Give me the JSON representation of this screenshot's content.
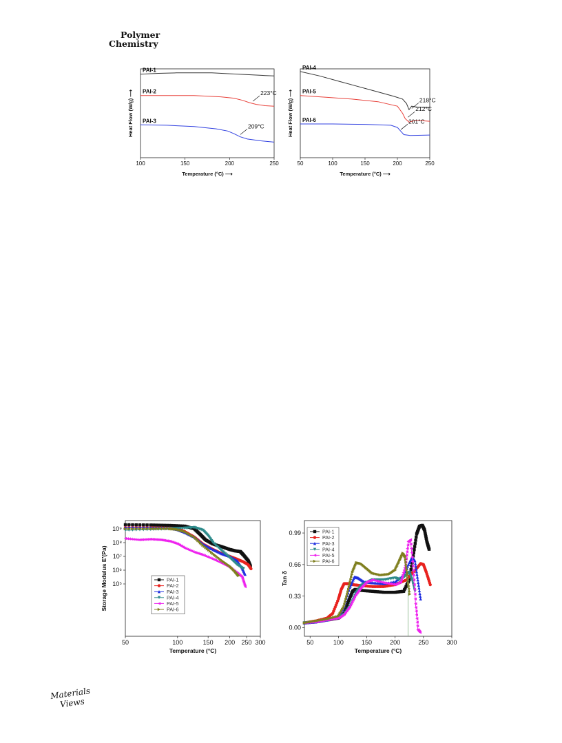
{
  "page": {
    "journal_line1": "Polymer",
    "journal_line2": "Chemistry",
    "brand_line1": "Materials",
    "brand_line2": "Views"
  },
  "chart_data": [
    {
      "type": "line",
      "xlabel": "Temperature (°C) ⟶",
      "ylabel": "Heat Flow (W/g) ⟶",
      "xlim": [
        100,
        250
      ],
      "ylim": [
        0,
        1
      ],
      "xticks": [
        100,
        150,
        200,
        250
      ],
      "grid": false,
      "series": [
        {
          "name": "PAI-1",
          "color": "#333333",
          "x": [
            100,
            120,
            140,
            160,
            180,
            200,
            220,
            240,
            250
          ],
          "y": [
            0.94,
            0.95,
            0.955,
            0.955,
            0.955,
            0.945,
            0.935,
            0.925,
            0.92
          ]
        },
        {
          "name": "PAI-2",
          "color": "#e8413a",
          "x": [
            100,
            130,
            160,
            190,
            205,
            215,
            222,
            230,
            240,
            250
          ],
          "y": [
            0.7,
            0.7,
            0.7,
            0.685,
            0.67,
            0.645,
            0.62,
            0.6,
            0.585,
            0.58
          ]
        },
        {
          "name": "PAI-3",
          "color": "#2f3fe0",
          "x": [
            100,
            130,
            160,
            185,
            198,
            205,
            212,
            220,
            235,
            250
          ],
          "y": [
            0.37,
            0.365,
            0.35,
            0.325,
            0.3,
            0.27,
            0.235,
            0.21,
            0.19,
            0.175
          ]
        }
      ],
      "annotations": [
        {
          "text": "223°C",
          "x": 223,
          "y": 0.62
        },
        {
          "text": "209°C",
          "x": 209,
          "y": 0.245
        }
      ]
    },
    {
      "type": "line",
      "xlabel": "Temperature (°C) ⟶",
      "ylabel": "Heat Flow (W/g) ⟶",
      "xlim": [
        50,
        250
      ],
      "ylim": [
        0,
        1
      ],
      "xticks": [
        50,
        100,
        150,
        200,
        250
      ],
      "grid": false,
      "series": [
        {
          "name": "PAI-4",
          "color": "#333333",
          "x": [
            50,
            80,
            110,
            140,
            170,
            195,
            208,
            214,
            218,
            222,
            230,
            250
          ],
          "y": [
            0.97,
            0.92,
            0.86,
            0.8,
            0.74,
            0.69,
            0.66,
            0.61,
            0.54,
            0.58,
            0.57,
            0.565
          ]
        },
        {
          "name": "PAI-5",
          "color": "#e8413a",
          "x": [
            50,
            90,
            130,
            170,
            200,
            208,
            212,
            218,
            228,
            250
          ],
          "y": [
            0.7,
            0.68,
            0.66,
            0.63,
            0.58,
            0.5,
            0.44,
            0.4,
            0.42,
            0.41
          ]
        },
        {
          "name": "PAI-6",
          "color": "#2f3fe0",
          "x": [
            50,
            100,
            150,
            190,
            200,
            205,
            210,
            220,
            250
          ],
          "y": [
            0.38,
            0.38,
            0.375,
            0.365,
            0.34,
            0.3,
            0.26,
            0.25,
            0.255
          ]
        }
      ],
      "annotations": [
        {
          "text": "218°C",
          "x": 218,
          "y": 0.54
        },
        {
          "text": "212°C",
          "x": 212,
          "y": 0.44
        },
        {
          "text": "201°C",
          "x": 201,
          "y": 0.3
        }
      ]
    },
    {
      "type": "scatter",
      "xlabel": "Temperature (°C)",
      "ylabel": "Storage Modulus E'(Pa)",
      "xscale": "log",
      "yscale": "log",
      "xlim": [
        50,
        300
      ],
      "ylim": [
        1.2,
        9.6
      ],
      "xticks": [
        50,
        100,
        150,
        200,
        250,
        300
      ],
      "yticks": [
        "10⁵",
        "10⁶",
        "10⁷",
        "10⁸",
        "10⁹"
      ],
      "ytick_values": [
        5,
        6,
        7,
        8,
        9
      ],
      "legend": "center",
      "series": [
        {
          "name": "PAI-1",
          "color": "#111111",
          "marker": "square",
          "x": [
            50,
            70,
            90,
            110,
            125,
            135,
            145,
            160,
            180,
            200,
            215,
            230,
            240,
            255,
            263
          ],
          "y": [
            9.3,
            9.28,
            9.25,
            9.2,
            9.0,
            8.6,
            8.2,
            7.9,
            7.7,
            7.5,
            7.4,
            7.35,
            7.1,
            6.7,
            6.3
          ]
        },
        {
          "name": "PAI-2",
          "color": "#e8221e",
          "marker": "circle",
          "x": [
            50,
            70,
            90,
            100,
            110,
            125,
            140,
            160,
            180,
            200,
            220,
            240,
            255,
            265
          ],
          "y": [
            9.1,
            9.08,
            9.05,
            9.0,
            8.8,
            8.4,
            7.9,
            7.5,
            7.2,
            7.0,
            6.8,
            6.6,
            6.4,
            6.1
          ]
        },
        {
          "name": "PAI-3",
          "color": "#1f2fe0",
          "marker": "triangle-up",
          "x": [
            50,
            70,
            90,
            100,
            110,
            125,
            140,
            160,
            180,
            200,
            220,
            235,
            245
          ],
          "y": [
            9.1,
            9.08,
            9.05,
            8.95,
            8.75,
            8.4,
            7.9,
            7.5,
            7.2,
            7.0,
            6.7,
            6.2,
            5.7
          ]
        },
        {
          "name": "PAI-4",
          "color": "#2e8b8b",
          "marker": "triangle-down",
          "x": [
            50,
            70,
            90,
            110,
            125,
            140,
            150,
            160,
            180,
            200,
            220,
            240
          ],
          "y": [
            8.9,
            8.95,
            9.0,
            9.05,
            9.1,
            8.9,
            8.5,
            8.0,
            7.4,
            6.9,
            6.4,
            6.1
          ]
        },
        {
          "name": "PAI-5",
          "color": "#ee22ee",
          "marker": "triangle-left",
          "x": [
            50,
            60,
            70,
            80,
            90,
            100,
            110,
            125,
            140,
            160,
            180,
            200,
            220,
            235,
            245
          ],
          "y": [
            8.3,
            8.2,
            8.25,
            8.2,
            8.1,
            7.9,
            7.6,
            7.3,
            7.1,
            6.8,
            6.5,
            6.2,
            5.8,
            5.5,
            4.8
          ]
        },
        {
          "name": "PAI-6",
          "color": "#7f7f1f",
          "marker": "triangle-right",
          "x": [
            50,
            70,
            90,
            100,
            110,
            125,
            140,
            160,
            180,
            200,
            215,
            225
          ],
          "y": [
            9.0,
            9.0,
            9.0,
            8.95,
            8.8,
            8.4,
            7.8,
            7.2,
            6.7,
            6.3,
            5.9,
            5.6
          ]
        }
      ]
    },
    {
      "type": "scatter",
      "xlabel": "Temperature (°C)",
      "ylabel": "Tan δ",
      "xlim": [
        40,
        300
      ],
      "ylim": [
        -0.09,
        1.12
      ],
      "xticks": [
        50,
        100,
        150,
        200,
        250,
        300
      ],
      "yticks": [
        "0.00",
        "0.33",
        "0.66",
        "0.99"
      ],
      "ytick_values": [
        0,
        0.33,
        0.66,
        0.99
      ],
      "legend": "top-left",
      "series": [
        {
          "name": "PAI-1",
          "color": "#111111",
          "marker": "square",
          "x": [
            40,
            60,
            80,
            100,
            110,
            118,
            125,
            130,
            140,
            160,
            180,
            200,
            215,
            225,
            232,
            238,
            243,
            248,
            252,
            256,
            260
          ],
          "y": [
            0.05,
            0.06,
            0.08,
            0.1,
            0.15,
            0.28,
            0.38,
            0.4,
            0.39,
            0.38,
            0.37,
            0.37,
            0.38,
            0.5,
            0.75,
            0.98,
            1.06,
            1.07,
            1.02,
            0.9,
            0.82
          ]
        },
        {
          "name": "PAI-2",
          "color": "#e8221e",
          "marker": "circle",
          "x": [
            40,
            60,
            80,
            90,
            100,
            105,
            110,
            118,
            125,
            140,
            160,
            180,
            200,
            220,
            235,
            245,
            250,
            255,
            262
          ],
          "y": [
            0.05,
            0.07,
            0.1,
            0.15,
            0.3,
            0.4,
            0.46,
            0.46,
            0.45,
            0.44,
            0.43,
            0.43,
            0.45,
            0.5,
            0.6,
            0.67,
            0.66,
            0.58,
            0.45
          ]
        },
        {
          "name": "PAI-3",
          "color": "#1f2fe0",
          "marker": "triangle-up",
          "x": [
            40,
            60,
            80,
            100,
            110,
            120,
            128,
            135,
            145,
            160,
            180,
            200,
            215,
            225,
            230,
            235,
            240,
            245
          ],
          "y": [
            0.05,
            0.06,
            0.08,
            0.12,
            0.22,
            0.42,
            0.53,
            0.52,
            0.48,
            0.47,
            0.46,
            0.48,
            0.55,
            0.68,
            0.74,
            0.7,
            0.5,
            0.3
          ]
        },
        {
          "name": "PAI-4",
          "color": "#2e8b8b",
          "marker": "triangle-down",
          "x": [
            40,
            60,
            80,
            100,
            110,
            120,
            130,
            140,
            150,
            160,
            180,
            200,
            210,
            220,
            225,
            230,
            235
          ],
          "y": [
            0.05,
            0.06,
            0.08,
            0.1,
            0.14,
            0.22,
            0.36,
            0.44,
            0.47,
            0.5,
            0.5,
            0.52,
            0.5,
            0.55,
            0.58,
            0.5,
            0.38
          ]
        },
        {
          "name": "PAI-5",
          "color": "#ee22ee",
          "marker": "triangle-left",
          "x": [
            40,
            60,
            80,
            100,
            110,
            120,
            130,
            140,
            150,
            160,
            180,
            200,
            210,
            218,
            223,
            227,
            232,
            236,
            240,
            244
          ],
          "y": [
            0.05,
            0.06,
            0.08,
            0.1,
            0.14,
            0.22,
            0.34,
            0.42,
            0.48,
            0.5,
            0.47,
            0.45,
            0.48,
            0.65,
            0.9,
            0.92,
            0.6,
            0.25,
            -0.02,
            -0.05
          ]
        },
        {
          "name": "PAI-6",
          "color": "#7f7f1f",
          "marker": "triangle-right",
          "x": [
            40,
            60,
            80,
            100,
            110,
            118,
            125,
            132,
            140,
            150,
            160,
            175,
            190,
            200,
            208,
            214,
            218,
            222,
            226
          ],
          "y": [
            0.05,
            0.07,
            0.09,
            0.12,
            0.22,
            0.4,
            0.58,
            0.68,
            0.67,
            0.62,
            0.57,
            0.55,
            0.56,
            0.6,
            0.7,
            0.78,
            0.74,
            0.55,
            0.35
          ]
        }
      ]
    }
  ]
}
